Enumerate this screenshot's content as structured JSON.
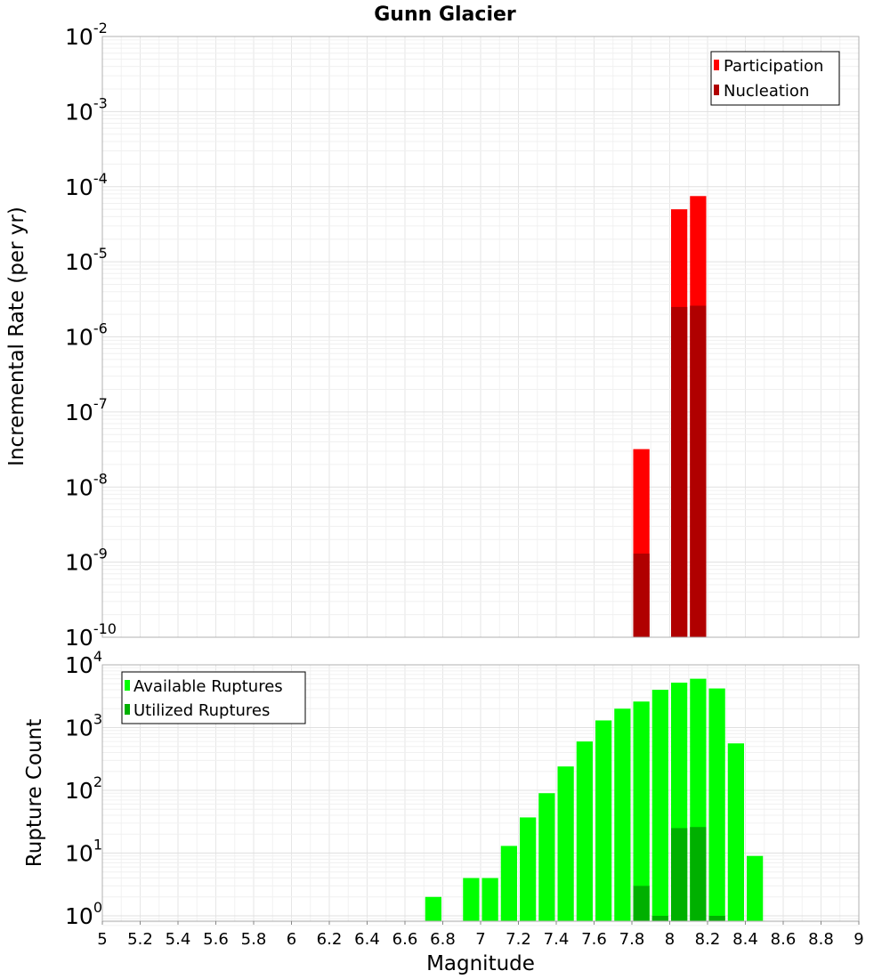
{
  "chart_data": [
    {
      "type": "bar",
      "title": "Gunn Glacier",
      "xlabel": "Magnitude",
      "ylabel": "Incremental Rate (per yr)",
      "yscale": "log",
      "ylim": [
        1e-10,
        0.01
      ],
      "y_tick_exponents": [
        "-10",
        "-9",
        "-8",
        "-7",
        "-6",
        "-5",
        "-4",
        "-3",
        "-2"
      ],
      "x_bin_width": 0.1,
      "legend": [
        "Participation",
        "Nucleation"
      ],
      "legend_position": "top-right",
      "colors": {
        "Participation": "#ff0000",
        "Nucleation": "#b00000"
      },
      "series": [
        {
          "name": "Participation",
          "x": [
            7.85,
            8.05,
            8.15
          ],
          "values": [
            3.2e-08,
            5e-05,
            7.5e-05
          ]
        },
        {
          "name": "Nucleation",
          "x": [
            7.85,
            8.05,
            8.15
          ],
          "values": [
            1.3e-09,
            2.5e-06,
            2.6e-06
          ]
        }
      ]
    },
    {
      "type": "bar",
      "title": "",
      "xlabel": "Magnitude",
      "ylabel": "Rupture Count",
      "yscale": "log",
      "ylim": [
        0.7,
        10000
      ],
      "y_tick_exponents": [
        "0",
        "1",
        "2",
        "3",
        "4"
      ],
      "x_bin_width": 0.1,
      "xlim": [
        5,
        9
      ],
      "x_ticks": [
        "5",
        "5.2",
        "5.4",
        "5.6",
        "5.8",
        "6",
        "6.2",
        "6.4",
        "6.6",
        "6.8",
        "7",
        "7.2",
        "7.4",
        "7.6",
        "7.8",
        "8",
        "8.2",
        "8.4",
        "8.6",
        "8.8",
        "9"
      ],
      "legend": [
        "Available Ruptures",
        "Utilized Ruptures"
      ],
      "legend_position": "top-left",
      "colors": {
        "Available Ruptures": "#00ff00",
        "Utilized Ruptures": "#00b000"
      },
      "series": [
        {
          "name": "Available Ruptures",
          "x": [
            6.75,
            6.95,
            7.05,
            7.15,
            7.25,
            7.35,
            7.45,
            7.55,
            7.65,
            7.75,
            7.85,
            7.95,
            8.05,
            8.15,
            8.25,
            8.35,
            8.45
          ],
          "values": [
            2,
            4,
            4,
            13,
            37,
            90,
            240,
            600,
            1300,
            2000,
            2600,
            4000,
            5200,
            6000,
            4200,
            560,
            9
          ]
        },
        {
          "name": "Utilized Ruptures",
          "x": [
            7.85,
            7.95,
            8.05,
            8.15,
            8.25
          ],
          "values": [
            3,
            1,
            25,
            26,
            1
          ]
        }
      ]
    }
  ]
}
